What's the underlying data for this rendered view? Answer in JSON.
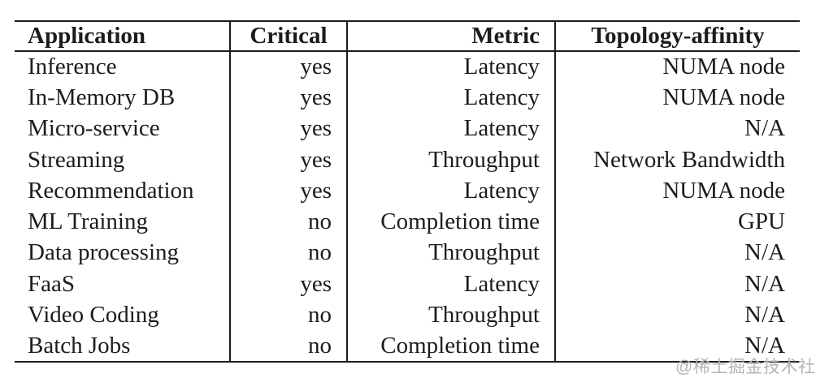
{
  "table": {
    "columns": [
      {
        "key": "application",
        "label": "Application"
      },
      {
        "key": "critical",
        "label": "Critical"
      },
      {
        "key": "metric",
        "label": "Metric"
      },
      {
        "key": "topology-affinity",
        "label": "Topology-affinity"
      }
    ],
    "rows": [
      [
        "Inference",
        "yes",
        "Latency",
        "NUMA node"
      ],
      [
        "In-Memory DB",
        "yes",
        "Latency",
        "NUMA node"
      ],
      [
        "Micro-service",
        "yes",
        "Latency",
        "N/A"
      ],
      [
        "Streaming",
        "yes",
        "Throughput",
        "Network Bandwidth"
      ],
      [
        "Recommendation",
        "yes",
        "Latency",
        "NUMA node"
      ],
      [
        "ML Training",
        "no",
        "Completion time",
        "GPU"
      ],
      [
        "Data processing",
        "no",
        "Throughput",
        "N/A"
      ],
      [
        "FaaS",
        "yes",
        "Latency",
        "N/A"
      ],
      [
        "Video Coding",
        "no",
        "Throughput",
        "N/A"
      ],
      [
        "Batch Jobs",
        "no",
        "Completion time",
        "N/A"
      ]
    ]
  },
  "watermark": {
    "text": "@稀土掘金技术社区"
  },
  "colors": {
    "text": "#1c1c1c",
    "border": "#1c1c1c",
    "background": "#ffffff",
    "watermark": "#b4b4b4"
  }
}
